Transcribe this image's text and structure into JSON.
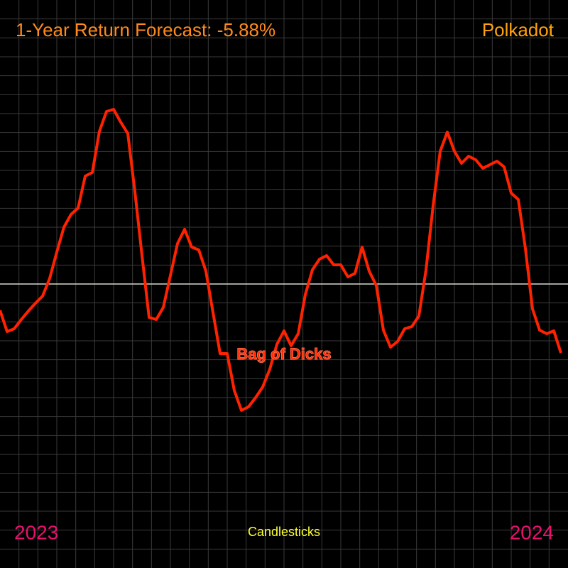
{
  "chart_data": {
    "type": "line",
    "title": "1-Year Return Forecast: -5.88%",
    "subtitle": "Polkadot",
    "x_labels": [
      "2023",
      "2024"
    ],
    "x_axis_label": "Candlesticks",
    "annotation": "Bag of Dicks",
    "baseline": 0,
    "ylim": [
      -400,
      400
    ],
    "grid": true,
    "series": [
      {
        "color": "#ff2200",
        "values": [
          -37,
          -67,
          -63,
          -50,
          -38,
          -27,
          -17,
          8,
          45,
          80,
          98,
          107,
          152,
          157,
          215,
          243,
          246,
          228,
          212,
          130,
          40,
          -47,
          -50,
          -33,
          12,
          57,
          77,
          52,
          48,
          18,
          -40,
          -98,
          -98,
          -150,
          -178,
          -173,
          -160,
          -145,
          -120,
          -85,
          -66,
          -87,
          -70,
          -15,
          20,
          35,
          40,
          27,
          27,
          10,
          15,
          52,
          18,
          -2,
          -65,
          -89,
          -81,
          -63,
          -60,
          -45,
          20,
          110,
          187,
          214,
          187,
          170,
          180,
          175,
          163,
          168,
          173,
          165,
          128,
          119,
          50,
          -35,
          -65,
          -70,
          -66,
          -97
        ]
      }
    ]
  }
}
